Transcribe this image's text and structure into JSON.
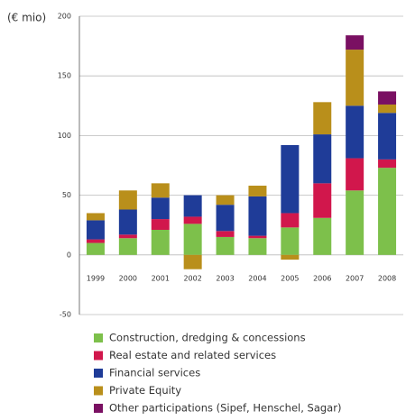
{
  "chart_data": {
    "type": "stacked_bar",
    "y_label": "(€ mio)",
    "categories": [
      "1999",
      "2000",
      "2001",
      "2002",
      "2003",
      "2004",
      "2005",
      "2006",
      "2007",
      "2008"
    ],
    "series": [
      {
        "name": "Construction, dredging & concessions",
        "color": "#7dc04b",
        "values": [
          10,
          14,
          21,
          26,
          15,
          14,
          23,
          31,
          54,
          73
        ]
      },
      {
        "name": "Real estate and related services",
        "color": "#d1174c",
        "values": [
          3,
          3,
          9,
          6,
          5,
          2,
          12,
          29,
          27,
          7
        ]
      },
      {
        "name": "Financial services",
        "color": "#1f3c98",
        "values": [
          16,
          21,
          18,
          18,
          22,
          33,
          57,
          41,
          44,
          39
        ]
      },
      {
        "name": "Private Equity",
        "color": "#b98f1b",
        "values": [
          6,
          16,
          12,
          -12,
          8,
          9,
          -4,
          27,
          47,
          7
        ]
      },
      {
        "name": "Other participations (Sipef, Henschel, Sagar)",
        "color": "#7a1062",
        "values": [
          null,
          null,
          null,
          null,
          null,
          null,
          null,
          null,
          12,
          11
        ]
      }
    ],
    "ylim": [
      -50,
      200
    ],
    "yticks": [
      -50,
      0,
      50,
      100,
      150,
      200
    ],
    "grid": true
  }
}
